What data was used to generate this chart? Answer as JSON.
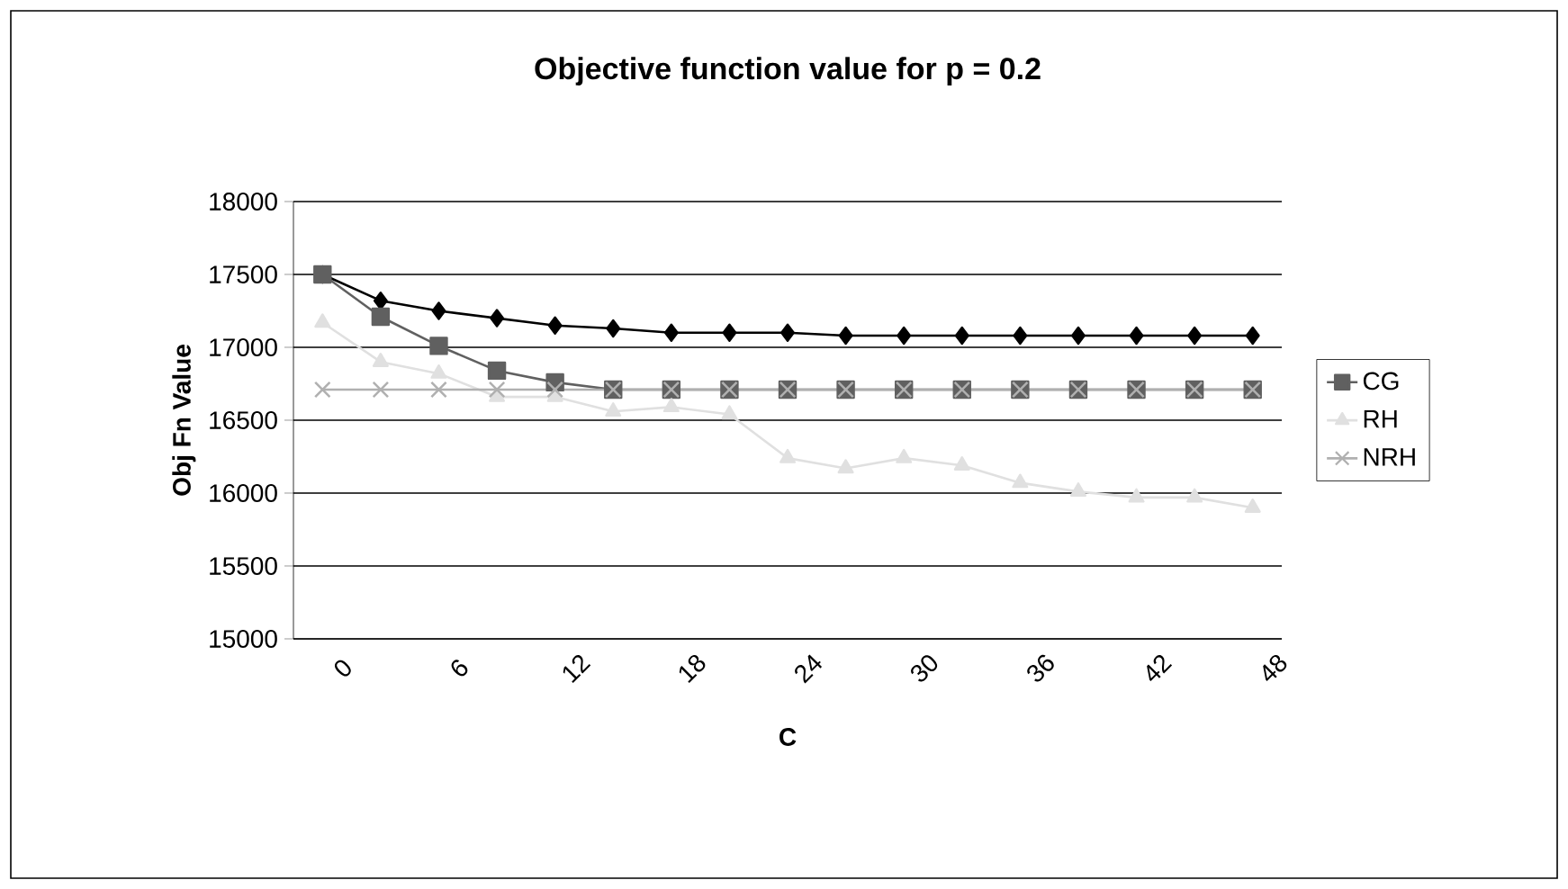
{
  "chart_data": {
    "type": "line",
    "title": "Objective function value for p = 0.2",
    "xlabel": "C",
    "ylabel": "Obj Fn Value",
    "categories": [
      "0",
      null,
      "6",
      null,
      "12",
      null,
      "18",
      null,
      "24",
      null,
      "30",
      null,
      "36",
      null,
      "42",
      null,
      "48"
    ],
    "ylim": [
      15000,
      18000
    ],
    "yticks": [
      15000,
      15500,
      16000,
      16500,
      17000,
      17500,
      18000
    ],
    "grid": "y",
    "legend": "right",
    "line_style": "solid",
    "series": [
      {
        "color": "#000000",
        "marker": "diamond",
        "values": [
          17500,
          17320,
          17250,
          17200,
          17150,
          17130,
          17100,
          17100,
          17100,
          17080,
          17080,
          17080,
          17080,
          17080,
          17080,
          17080,
          17080
        ]
      },
      {
        "name": "CG",
        "color": "#606060",
        "marker": "square",
        "values": [
          17500,
          17210,
          17010,
          16840,
          16760,
          16710,
          16710,
          16710,
          16710,
          16710,
          16710,
          16710,
          16710,
          16710,
          16710,
          16710,
          16710
        ]
      },
      {
        "name": "RH",
        "color": "#e0e0e0",
        "marker": "triangle",
        "values": [
          17170,
          16900,
          16820,
          16660,
          16660,
          16560,
          16590,
          16540,
          16240,
          16170,
          16240,
          16190,
          16070,
          16010,
          15970,
          15970,
          15900
        ]
      },
      {
        "name": "NRH",
        "color": "#b0b0b0",
        "marker": "cross",
        "values": [
          16710,
          16710,
          16710,
          16710,
          16710,
          16710,
          16710,
          16710,
          16710,
          16710,
          16710,
          16710,
          16710,
          16710,
          16710,
          16710,
          16710
        ]
      }
    ]
  }
}
